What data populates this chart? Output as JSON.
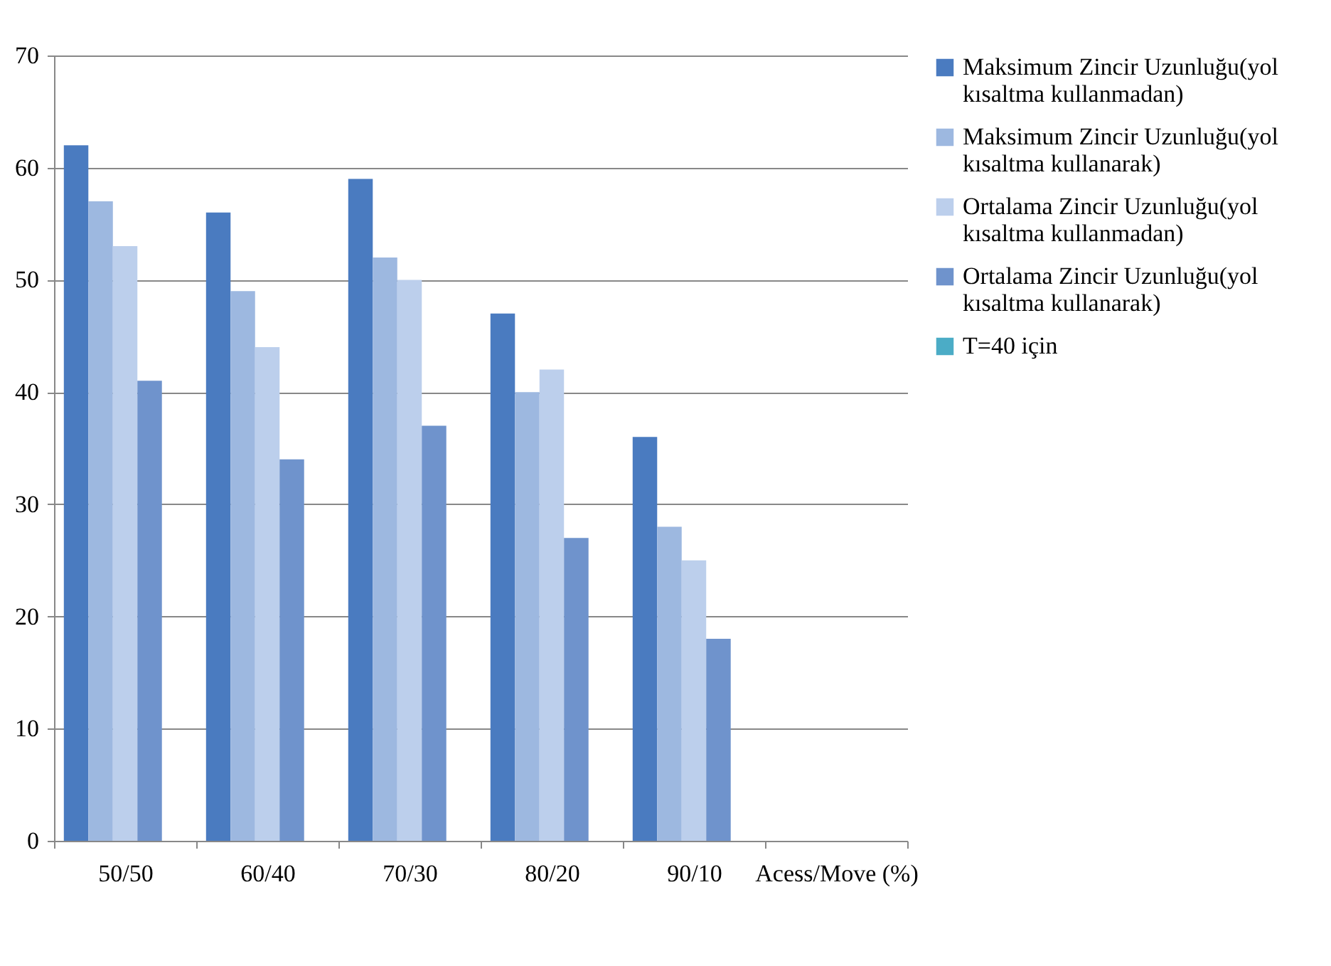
{
  "chart_data": {
    "type": "bar",
    "categories": [
      "50/50",
      "60/40",
      "70/30",
      "80/20",
      "90/10",
      "Acess/Move (%)"
    ],
    "series": [
      {
        "name": "Maksimum Zincir Uzunluğu(yol kısaltma kullanmadan)",
        "color": "#4a7bc0",
        "values": [
          62,
          56,
          59,
          47,
          36,
          null
        ]
      },
      {
        "name": "Maksimum Zincir Uzunluğu(yol kısaltma kullanarak)",
        "color": "#9db8e0",
        "values": [
          57,
          49,
          52,
          40,
          28,
          null
        ]
      },
      {
        "name": "Ortalama Zincir Uzunluğu(yol kısaltma kullanmadan)",
        "color": "#bccfec",
        "values": [
          53,
          44,
          50,
          42,
          25,
          null
        ]
      },
      {
        "name": "Ortalama Zincir Uzunluğu(yol kısaltma kullanarak)",
        "color": "#6f93cc",
        "values": [
          41,
          34,
          37,
          27,
          18,
          null
        ]
      },
      {
        "name": "T=40 için",
        "color": "#4bacc6",
        "values": [
          null,
          null,
          null,
          null,
          null,
          null
        ]
      }
    ],
    "ylim": [
      0,
      70
    ],
    "yticks": [
      0,
      10,
      20,
      30,
      40,
      50,
      60,
      70
    ],
    "grid": "y",
    "legend": "right"
  }
}
